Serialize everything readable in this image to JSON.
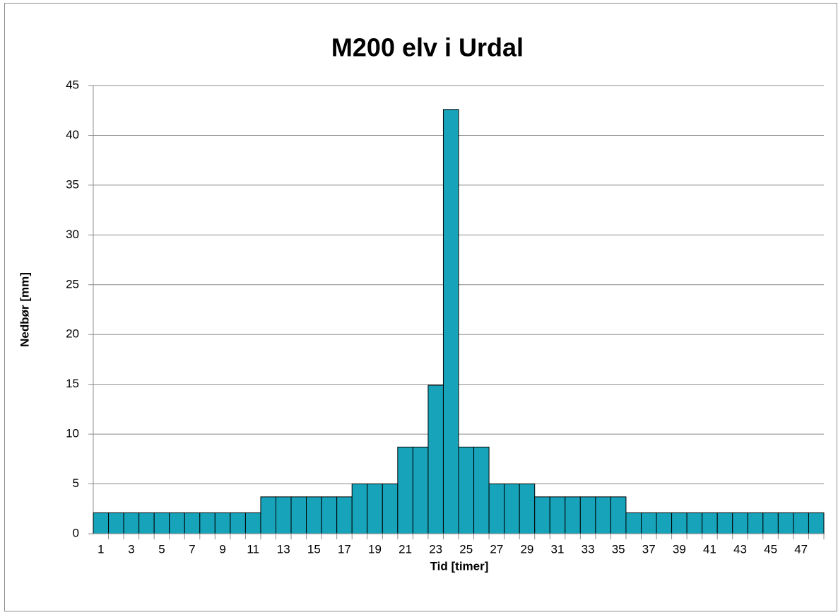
{
  "chart_data": {
    "type": "bar",
    "title": "M200 elv i Urdal",
    "x_label": "Tid [timer]",
    "y_label": "Nedbør [mm]",
    "categories": [
      "1",
      null,
      "3",
      null,
      "5",
      null,
      "7",
      null,
      "9",
      null,
      "11",
      null,
      "13",
      null,
      "15",
      null,
      "17",
      null,
      "19",
      null,
      "21",
      null,
      "23",
      null,
      "25",
      null,
      "27",
      null,
      "29",
      null,
      "31",
      null,
      "33",
      null,
      "35",
      null,
      "37",
      null,
      "39",
      null,
      "41",
      null,
      "43",
      null,
      "45",
      null,
      "47",
      null
    ],
    "values": [
      2.1,
      2.1,
      2.1,
      2.1,
      2.1,
      2.1,
      2.1,
      2.1,
      2.1,
      2.1,
      2.1,
      3.7,
      3.7,
      3.7,
      3.7,
      3.7,
      3.7,
      5.0,
      5.0,
      5.0,
      8.7,
      8.7,
      14.9,
      42.6,
      8.7,
      8.7,
      5.0,
      5.0,
      5.0,
      3.7,
      3.7,
      3.7,
      3.7,
      3.7,
      3.7,
      2.1,
      2.1,
      2.1,
      2.1,
      2.1,
      2.1,
      2.1,
      2.1,
      2.1,
      2.1,
      2.1,
      2.1,
      2.1
    ],
    "color": "#17a3ba",
    "ylim": [
      0,
      45
    ],
    "yticks": [
      0,
      5,
      10,
      15,
      20,
      25,
      30,
      35,
      40,
      45
    ],
    "grid": true
  }
}
